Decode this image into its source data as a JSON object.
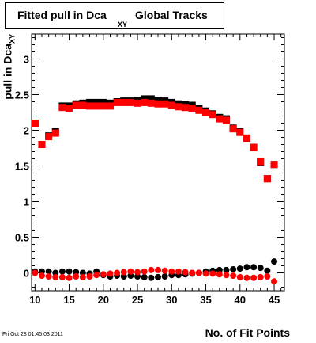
{
  "title_main": "Fitted pull in Dca",
  "title_sub": "XY",
  "title_rest": "Global Tracks",
  "timestamp": "Fri Oct 28 01:45:03 2011",
  "colors": {
    "series1": "#000000",
    "series2": "#ff0000",
    "frame": "#000000"
  },
  "chart_data": {
    "type": "scatter",
    "title": "Fitted pull in Dca XY Global Tracks",
    "xlabel": "No. of Fit Points",
    "ylabel": "pull in Dca",
    "ylabel_sub": "XY",
    "xlim": [
      9.5,
      46.5
    ],
    "ylim": [
      -0.25,
      3.35
    ],
    "xticks": [
      10,
      15,
      20,
      25,
      30,
      35,
      40,
      45
    ],
    "yticks": [
      0,
      0.5,
      1,
      1.5,
      2,
      2.5,
      3
    ],
    "xtick_labels": [
      "10",
      "15",
      "20",
      "25",
      "30",
      "35",
      "40",
      "45"
    ],
    "ytick_labels": [
      "0",
      "0.5",
      "1",
      "1.5",
      "2",
      "2.5",
      "3"
    ],
    "grid": false,
    "series": [
      {
        "color": "#000000",
        "marker_top": "square",
        "marker_bottom": "circle",
        "upper": {
          "x": [
            10,
            11,
            12,
            13,
            14,
            15,
            16,
            17,
            18,
            19,
            20,
            21,
            22,
            23,
            24,
            25,
            26,
            27,
            28,
            29,
            30,
            31,
            32,
            33,
            34,
            35,
            36,
            37,
            38,
            39,
            40,
            41,
            42,
            43,
            44,
            45,
            46
          ],
          "y": [
            2.1,
            1.8,
            1.92,
            1.98,
            2.34,
            2.34,
            2.37,
            2.38,
            2.39,
            2.39,
            2.39,
            2.38,
            2.4,
            2.41,
            2.41,
            2.42,
            2.44,
            2.44,
            2.42,
            2.41,
            2.39,
            2.37,
            2.36,
            2.35,
            2.31,
            2.27,
            2.23,
            2.18,
            2.16,
            2.03,
            1.98,
            1.89,
            1.76,
            1.55,
            1.32,
            1.52,
            null
          ]
        },
        "lower": {
          "x": [
            10,
            11,
            12,
            13,
            14,
            15,
            16,
            17,
            18,
            19,
            20,
            21,
            22,
            23,
            24,
            25,
            26,
            27,
            28,
            29,
            30,
            31,
            32,
            33,
            34,
            35,
            36,
            37,
            38,
            39,
            40,
            41,
            42,
            43,
            44,
            45,
            46
          ],
          "y": [
            0.02,
            0.02,
            0.02,
            0.0,
            0.02,
            0.02,
            0.01,
            0.0,
            -0.01,
            0.02,
            -0.03,
            -0.05,
            -0.04,
            -0.05,
            -0.04,
            -0.05,
            -0.06,
            -0.07,
            -0.06,
            -0.05,
            -0.03,
            -0.03,
            -0.02,
            -0.01,
            0.0,
            0.02,
            0.03,
            0.04,
            0.04,
            0.05,
            0.06,
            0.08,
            0.08,
            0.07,
            0.03,
            0.16,
            null
          ]
        }
      },
      {
        "color": "#ff0000",
        "marker_top": "square",
        "marker_bottom": "circle",
        "upper": {
          "x": [
            10,
            11,
            12,
            13,
            14,
            15,
            16,
            17,
            18,
            19,
            20,
            21,
            22,
            23,
            24,
            25,
            26,
            27,
            28,
            29,
            30,
            31,
            32,
            33,
            34,
            35,
            36,
            37,
            38,
            39,
            40,
            41,
            42,
            43,
            44,
            45,
            46
          ],
          "y": [
            2.1,
            1.8,
            1.91,
            1.96,
            2.32,
            2.31,
            2.35,
            2.35,
            2.34,
            2.34,
            2.34,
            2.34,
            2.39,
            2.39,
            2.39,
            2.38,
            2.39,
            2.38,
            2.37,
            2.37,
            2.35,
            2.33,
            2.32,
            2.31,
            2.28,
            2.25,
            2.22,
            2.16,
            2.14,
            2.02,
            1.97,
            1.89,
            1.76,
            1.56,
            1.32,
            1.52,
            null
          ]
        },
        "lower": {
          "x": [
            10,
            11,
            12,
            13,
            14,
            15,
            16,
            17,
            18,
            19,
            20,
            21,
            22,
            23,
            24,
            25,
            26,
            27,
            28,
            29,
            30,
            31,
            32,
            33,
            34,
            35,
            36,
            37,
            38,
            39,
            40,
            41,
            42,
            43,
            44,
            45,
            46
          ],
          "y": [
            0.0,
            -0.04,
            -0.05,
            -0.06,
            -0.06,
            -0.07,
            -0.05,
            -0.06,
            -0.05,
            -0.03,
            -0.02,
            -0.01,
            0.0,
            0.01,
            0.02,
            0.01,
            0.02,
            0.04,
            0.04,
            0.03,
            0.02,
            0.02,
            0.01,
            0.0,
            0.0,
            -0.01,
            -0.01,
            -0.02,
            -0.03,
            -0.04,
            -0.06,
            -0.07,
            -0.07,
            -0.06,
            -0.05,
            -0.12,
            null
          ]
        }
      }
    ]
  }
}
